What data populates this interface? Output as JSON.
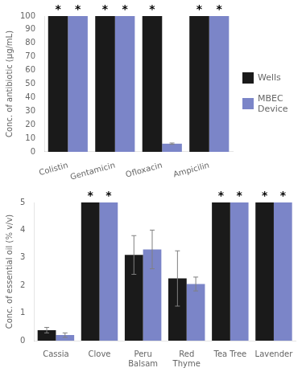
{
  "chart_data": [
    {
      "type": "bar",
      "categories": [
        "Colistin",
        "Gentamicin",
        "Ofloxacin",
        "Ampicilin"
      ],
      "series": [
        {
          "name": "Wells",
          "color": "#1a1a1a",
          "values": [
            100,
            100,
            100,
            100
          ],
          "errors": [
            0,
            0,
            0,
            0
          ]
        },
        {
          "name": "MBEC\nDevice",
          "color": "#7b85c8",
          "values": [
            100,
            100,
            6,
            100
          ],
          "errors": [
            0,
            0,
            0.5,
            0
          ]
        }
      ],
      "ylabel": "Conc. of antibiotic (μg/mL)",
      "ylim": [
        0,
        100
      ],
      "yticks": [
        0,
        10,
        20,
        30,
        40,
        50,
        60,
        70,
        80,
        90,
        100
      ],
      "grid": false,
      "legend": "right",
      "annotations": [
        {
          "text": "*",
          "series": "Wells",
          "category": "Colistin"
        },
        {
          "text": "*",
          "series": "Wells",
          "category": "Gentamicin"
        },
        {
          "text": "*",
          "series": "Wells",
          "category": "Ofloxacin"
        },
        {
          "text": "*",
          "series": "Wells",
          "category": "Ampicilin"
        },
        {
          "text": "*",
          "series": "MBEC\nDevice",
          "category": "Colistin"
        },
        {
          "text": "*",
          "series": "MBEC\nDevice",
          "category": "Gentamicin"
        },
        {
          "text": "*",
          "series": "MBEC\nDevice",
          "category": "Ampicilin"
        }
      ]
    },
    {
      "type": "bar",
      "categories": [
        "Cassia",
        "Clove",
        "Peru\nBalsam",
        "Red\nThyme",
        "Tea Tree",
        "Lavender"
      ],
      "series": [
        {
          "name": "Wells",
          "color": "#1a1a1a",
          "values": [
            0.38,
            5.0,
            3.1,
            2.25,
            5.0,
            5.0
          ],
          "errors": [
            0.1,
            0,
            0.7,
            1.0,
            0,
            0
          ]
        },
        {
          "name": "MBEC\nDevice",
          "color": "#7b85c8",
          "values": [
            0.2,
            5.0,
            3.3,
            2.05,
            5.0,
            5.0
          ],
          "errors": [
            0.08,
            0,
            0.7,
            0.25,
            0,
            0
          ]
        }
      ],
      "ylabel": "Conc. of essential oil (% v/v)",
      "ylim": [
        0,
        5
      ],
      "yticks": [
        0,
        1,
        2,
        3,
        4,
        5
      ],
      "grid": false,
      "annotations": [
        {
          "text": "*",
          "series": "Wells",
          "category": "Clove"
        },
        {
          "text": "*",
          "series": "Wells",
          "category": "Tea Tree"
        },
        {
          "text": "*",
          "series": "Wells",
          "category": "Lavender"
        },
        {
          "text": "*",
          "series": "MBEC\nDevice",
          "category": "Clove"
        },
        {
          "text": "*",
          "series": "MBEC\nDevice",
          "category": "Tea Tree"
        },
        {
          "text": "*",
          "series": "MBEC\nDevice",
          "category": "Lavender"
        }
      ]
    }
  ]
}
